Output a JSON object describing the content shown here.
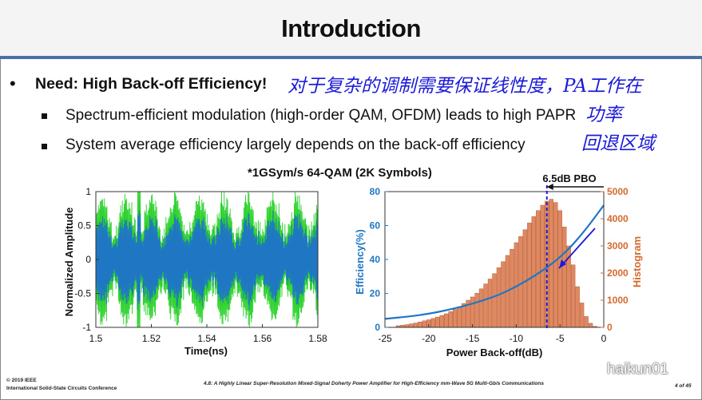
{
  "slide": {
    "title": "Introduction",
    "bullet_main": "Need: High Back-off Efficiency!",
    "sub_bullets": [
      "Spectrum-efficient modulation (high-order QAM, OFDM) leads to high PAPR",
      "System average efficiency largely depends on the back-off efficiency"
    ],
    "handwriting": [
      "对于复杂的调制需要保证线性度，PA工作在",
      "功率",
      "回退区域"
    ],
    "figure_title": "*1GSym/s 64-QAM (2K Symbols)"
  },
  "footer": {
    "copyright": "© 2019 IEEE",
    "conference": "International Solid-State Circuits Conference",
    "paper_title": "4.8: A Highly Linear Super-Resolution Mixed-Signal Doherty Power Amplifier for High-Efficiency mm-Wave 5G Multi-Gb/s Communications",
    "page": "4 of 45",
    "watermark": "haikun01"
  },
  "colors": {
    "blue_signal": "#1f77c4",
    "green_envelope": "#2bd12b",
    "hist_bar": "#e08860",
    "hist_axis": "#d4692e",
    "eff_axis": "#1f77c4",
    "title_rule": "#4a6fa5",
    "handwriting": "#1a1ad8"
  },
  "chart_data": [
    {
      "type": "line",
      "xlabel": "Time(ns)",
      "ylabel": "Normalized Amplitude",
      "xlim": [
        1.5,
        1.58
      ],
      "ylim": [
        -1,
        1
      ],
      "x_ticks": [
        "1.5",
        "1.52",
        "1.54",
        "1.56",
        "1.58"
      ],
      "y_ticks": [
        "-1",
        "-0.5",
        "0",
        "0.5",
        "1"
      ],
      "series": [
        {
          "color": "green-envelope",
          "description_shown": "envelope peak near 1.515 ns reaching 1"
        },
        {
          "color": "blue-signal"
        }
      ]
    },
    {
      "type": "bar",
      "xlabel": "Power Back-off(dB)",
      "ylabel": "Efficiency(%)",
      "ylabel_right": "Histogram",
      "xlim": [
        -25,
        0
      ],
      "ylim": [
        0,
        80
      ],
      "ylim_right": [
        0,
        5000
      ],
      "x_ticks": [
        "-25",
        "-20",
        "-15",
        "-10",
        "-5",
        "0"
      ],
      "y_ticks": [
        "0",
        "20",
        "40",
        "60",
        "80"
      ],
      "y_ticks_right": [
        "0",
        "1000",
        "2000",
        "3000",
        "4000",
        "5000"
      ],
      "annotation": "6.5dB PBO",
      "pbo_x": -6.5,
      "histogram": {
        "x": [
          -23.5,
          -23,
          -22.5,
          -22,
          -21.5,
          -21,
          -20.5,
          -20,
          -19.5,
          -19,
          -18.5,
          -18,
          -17.5,
          -17,
          -16.5,
          -16,
          -15.5,
          -15,
          -14.5,
          -14,
          -13.5,
          -13,
          -12.5,
          -12,
          -11.5,
          -11,
          -10.5,
          -10,
          -9.5,
          -9,
          -8.5,
          -8,
          -7.5,
          -7,
          -6.5,
          -6,
          -5.5,
          -5,
          -4.5,
          -4,
          -3.5,
          -3,
          -2.5,
          -2,
          -1.5,
          -1
        ],
        "counts": [
          60,
          80,
          100,
          130,
          160,
          200,
          240,
          280,
          330,
          380,
          440,
          500,
          580,
          660,
          760,
          880,
          1000,
          1120,
          1260,
          1420,
          1600,
          1780,
          1980,
          2200,
          2420,
          2650,
          2880,
          3120,
          3350,
          3600,
          3850,
          4080,
          4300,
          4500,
          4650,
          4720,
          4600,
          4300,
          3700,
          3000,
          2300,
          1500,
          900,
          400,
          150,
          40
        ]
      },
      "efficiency_curve": {
        "x": [
          -25,
          -22,
          -20,
          -18,
          -16,
          -14,
          -12,
          -10,
          -8,
          -6,
          -4,
          -2,
          0
        ],
        "y": [
          5,
          6.5,
          8,
          10,
          12.5,
          15.5,
          19,
          24,
          30,
          37,
          46,
          58,
          72
        ]
      }
    }
  ]
}
